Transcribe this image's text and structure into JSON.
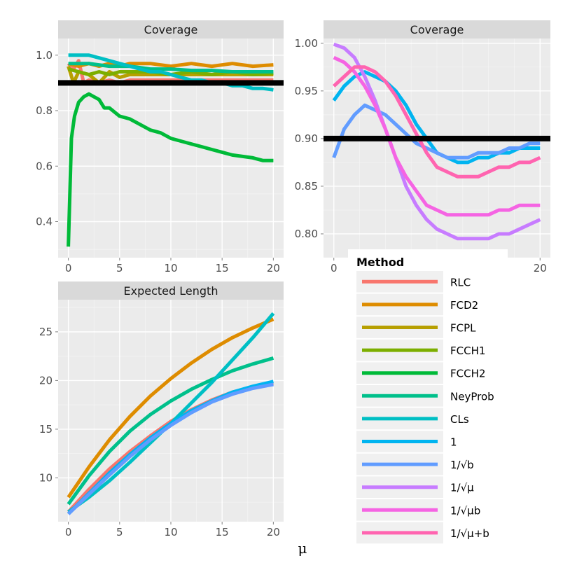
{
  "chart_data": [
    {
      "type": "line",
      "title": "Coverage",
      "xlabel": "μ",
      "ylabel": "",
      "xlim": [
        -1,
        21
      ],
      "ylim": [
        0.27,
        1.06
      ],
      "xticks": [
        0,
        5,
        10,
        15,
        20
      ],
      "xtick_labels": [
        "0",
        "5",
        "10",
        "15",
        "20"
      ],
      "yticks": [
        0.4,
        0.6,
        0.8,
        1.0
      ],
      "ytick_labels": [
        "0.4",
        "0.6",
        "0.8",
        "1.0"
      ],
      "reference_line": {
        "y": 0.9,
        "color": "#000000"
      },
      "series": [
        {
          "name": "RLC",
          "x": [
            0,
            0.5,
            1,
            1.5,
            2,
            3,
            4,
            5,
            6,
            8,
            10,
            12,
            14,
            16,
            18,
            20
          ],
          "values": [
            0.97,
            0.95,
            0.98,
            0.9,
            0.91,
            0.9,
            0.91,
            0.9,
            0.91,
            0.91,
            0.91,
            0.91,
            0.91,
            0.91,
            0.91,
            0.91
          ]
        },
        {
          "name": "FCD2",
          "x": [
            0,
            1,
            2,
            3,
            4,
            5,
            6,
            8,
            10,
            12,
            14,
            16,
            18,
            20
          ],
          "values": [
            0.97,
            0.96,
            0.97,
            0.96,
            0.97,
            0.96,
            0.97,
            0.97,
            0.96,
            0.97,
            0.96,
            0.97,
            0.96,
            0.965
          ]
        },
        {
          "name": "FCPL",
          "x": [
            0,
            0.5,
            1,
            2,
            3,
            4,
            5,
            6,
            8,
            10,
            12,
            14,
            16,
            18,
            20
          ],
          "values": [
            0.96,
            0.9,
            0.94,
            0.93,
            0.9,
            0.94,
            0.92,
            0.93,
            0.93,
            0.93,
            0.93,
            0.93,
            0.93,
            0.93,
            0.93
          ]
        },
        {
          "name": "FCCH1",
          "x": [
            0,
            1,
            2,
            3,
            4,
            5,
            6,
            8,
            10,
            12,
            14,
            16,
            18,
            20
          ],
          "values": [
            0.95,
            0.94,
            0.93,
            0.94,
            0.93,
            0.94,
            0.94,
            0.94,
            0.93,
            0.94,
            0.93,
            0.94,
            0.93,
            0.935
          ]
        },
        {
          "name": "FCCH2",
          "x": [
            0,
            0.3,
            0.6,
            1,
            1.5,
            2,
            2.5,
            3,
            3.5,
            4,
            5,
            6,
            7,
            8,
            9,
            10,
            11,
            12,
            13,
            14,
            15,
            16,
            17,
            18,
            19,
            20
          ],
          "values": [
            0.31,
            0.7,
            0.78,
            0.83,
            0.85,
            0.86,
            0.85,
            0.84,
            0.81,
            0.81,
            0.78,
            0.77,
            0.75,
            0.73,
            0.72,
            0.7,
            0.69,
            0.68,
            0.67,
            0.66,
            0.65,
            0.64,
            0.635,
            0.63,
            0.62,
            0.62
          ]
        },
        {
          "name": "NeyProb",
          "x": [
            0,
            2,
            4,
            6,
            8,
            10,
            12,
            14,
            16,
            18,
            20
          ],
          "values": [
            0.97,
            0.97,
            0.96,
            0.96,
            0.95,
            0.95,
            0.945,
            0.945,
            0.94,
            0.94,
            0.94
          ]
        },
        {
          "name": "CLs",
          "x": [
            0,
            1,
            2,
            3,
            4,
            5,
            6,
            7,
            8,
            9,
            10,
            11,
            12,
            13,
            14,
            15,
            16,
            17,
            18,
            19,
            20
          ],
          "values": [
            1.0,
            1.0,
            1.0,
            0.99,
            0.98,
            0.97,
            0.96,
            0.95,
            0.94,
            0.94,
            0.93,
            0.92,
            0.91,
            0.91,
            0.9,
            0.9,
            0.89,
            0.89,
            0.88,
            0.88,
            0.875
          ]
        }
      ]
    },
    {
      "type": "line",
      "title": "Coverage",
      "xlabel": "μ",
      "ylabel": "",
      "xlim": [
        -1,
        21
      ],
      "ylim": [
        0.775,
        1.005
      ],
      "xticks": [
        0,
        20
      ],
      "xtick_labels": [
        "0",
        "20"
      ],
      "yticks": [
        0.8,
        0.85,
        0.9,
        0.95,
        1.0
      ],
      "ytick_labels": [
        "0.80",
        "0.85",
        "0.90",
        "0.95",
        "1.00"
      ],
      "reference_line": {
        "y": 0.9,
        "color": "#000000"
      },
      "series": [
        {
          "name": "1",
          "x": [
            0,
            1,
            2,
            3,
            4,
            5,
            6,
            7,
            8,
            9,
            10,
            11,
            12,
            13,
            14,
            15,
            16,
            17,
            18,
            19,
            20
          ],
          "values": [
            0.94,
            0.955,
            0.965,
            0.97,
            0.965,
            0.96,
            0.95,
            0.935,
            0.915,
            0.9,
            0.885,
            0.88,
            0.875,
            0.875,
            0.88,
            0.88,
            0.885,
            0.885,
            0.89,
            0.89,
            0.89
          ]
        },
        {
          "name": "1/√b",
          "x": [
            0,
            1,
            2,
            3,
            4,
            5,
            6,
            7,
            8,
            9,
            10,
            11,
            12,
            13,
            14,
            15,
            16,
            17,
            18,
            19,
            20
          ],
          "values": [
            0.88,
            0.91,
            0.925,
            0.935,
            0.93,
            0.925,
            0.915,
            0.905,
            0.895,
            0.89,
            0.885,
            0.88,
            0.88,
            0.88,
            0.885,
            0.885,
            0.885,
            0.89,
            0.89,
            0.895,
            0.895
          ]
        },
        {
          "name": "1/√μ",
          "x": [
            0,
            1,
            2,
            3,
            4,
            5,
            6,
            7,
            8,
            9,
            10,
            11,
            12,
            13,
            14,
            15,
            16,
            17,
            18,
            19,
            20
          ],
          "values": [
            0.999,
            0.995,
            0.985,
            0.965,
            0.94,
            0.91,
            0.88,
            0.85,
            0.83,
            0.815,
            0.805,
            0.8,
            0.795,
            0.795,
            0.795,
            0.795,
            0.8,
            0.8,
            0.805,
            0.81,
            0.815
          ]
        },
        {
          "name": "1/√μb",
          "x": [
            0,
            1,
            2,
            3,
            4,
            5,
            6,
            7,
            8,
            9,
            10,
            11,
            12,
            13,
            14,
            15,
            16,
            17,
            18,
            19,
            20
          ],
          "values": [
            0.985,
            0.98,
            0.97,
            0.955,
            0.935,
            0.91,
            0.88,
            0.86,
            0.845,
            0.83,
            0.825,
            0.82,
            0.82,
            0.82,
            0.82,
            0.82,
            0.825,
            0.825,
            0.83,
            0.83,
            0.83
          ]
        },
        {
          "name": "1/√μ+b",
          "x": [
            0,
            1,
            2,
            3,
            4,
            5,
            6,
            7,
            8,
            9,
            10,
            11,
            12,
            13,
            14,
            15,
            16,
            17,
            18,
            19,
            20
          ],
          "values": [
            0.955,
            0.965,
            0.975,
            0.975,
            0.97,
            0.96,
            0.945,
            0.925,
            0.905,
            0.885,
            0.87,
            0.865,
            0.86,
            0.86,
            0.86,
            0.865,
            0.87,
            0.87,
            0.875,
            0.875,
            0.88
          ]
        }
      ]
    },
    {
      "type": "line",
      "title": "Expected Length",
      "xlabel": "μ",
      "ylabel": "",
      "xlim": [
        -1,
        21
      ],
      "ylim": [
        5.5,
        28.3
      ],
      "xticks": [
        0,
        5,
        10,
        15,
        20
      ],
      "xtick_labels": [
        "0",
        "5",
        "10",
        "15",
        "20"
      ],
      "yticks": [
        10,
        15,
        20,
        25
      ],
      "ytick_labels": [
        "10",
        "15",
        "20",
        "25"
      ],
      "series": [
        {
          "name": "RLC",
          "x": [
            0,
            2,
            4,
            6,
            8,
            10,
            12,
            14,
            16,
            18,
            20
          ],
          "values": [
            6.5,
            8.8,
            10.9,
            12.7,
            14.3,
            15.8,
            17.0,
            18.0,
            18.8,
            19.3,
            19.7
          ]
        },
        {
          "name": "FCD2",
          "x": [
            0,
            2,
            4,
            6,
            8,
            10,
            12,
            14,
            16,
            18,
            20
          ],
          "values": [
            8.0,
            11.1,
            13.9,
            16.3,
            18.4,
            20.2,
            21.8,
            23.2,
            24.4,
            25.4,
            26.3
          ]
        },
        {
          "name": "NeyProb",
          "x": [
            0,
            2,
            4,
            6,
            8,
            10,
            12,
            14,
            16,
            18,
            20
          ],
          "values": [
            7.3,
            10.2,
            12.7,
            14.8,
            16.5,
            17.9,
            19.1,
            20.1,
            21.0,
            21.7,
            22.3
          ]
        },
        {
          "name": "CLs",
          "x": [
            0,
            2,
            4,
            6,
            8,
            10,
            12,
            14,
            16,
            18,
            20
          ],
          "values": [
            6.5,
            8.0,
            9.7,
            11.6,
            13.6,
            15.6,
            17.7,
            19.8,
            22.1,
            24.4,
            26.9
          ]
        },
        {
          "name": "1",
          "x": [
            0,
            2,
            4,
            6,
            8,
            10,
            12,
            14,
            16,
            18,
            20
          ],
          "values": [
            6.3,
            8.4,
            10.5,
            12.4,
            14.1,
            15.6,
            16.9,
            17.9,
            18.8,
            19.4,
            19.9
          ]
        },
        {
          "name": "1/√b",
          "x": [
            0,
            2,
            4,
            6,
            8,
            10,
            12,
            14,
            16,
            18,
            20
          ],
          "values": [
            6.3,
            8.3,
            10.3,
            12.2,
            13.9,
            15.4,
            16.7,
            17.8,
            18.6,
            19.2,
            19.6
          ]
        }
      ]
    }
  ],
  "legend": {
    "title": "Method",
    "items": [
      {
        "label": "RLC",
        "color": "#F8766D"
      },
      {
        "label": "FCD2",
        "color": "#DE8C00"
      },
      {
        "label": "FCPL",
        "color": "#B79F00"
      },
      {
        "label": "FCCH1",
        "color": "#7CAE00"
      },
      {
        "label": "FCCH2",
        "color": "#00BA38"
      },
      {
        "label": "NeyProb",
        "color": "#00C08B"
      },
      {
        "label": "CLs",
        "color": "#00BFC4"
      },
      {
        "label": "1",
        "color": "#00B4F0"
      },
      {
        "label": "1/√b",
        "color": "#619CFF"
      },
      {
        "label": "1/√μ",
        "color": "#C77CFF"
      },
      {
        "label": "1/√μb",
        "color": "#F564E3"
      },
      {
        "label": "1/√μ+b",
        "color": "#FF64B0"
      }
    ]
  },
  "x_axis_title": "μ"
}
